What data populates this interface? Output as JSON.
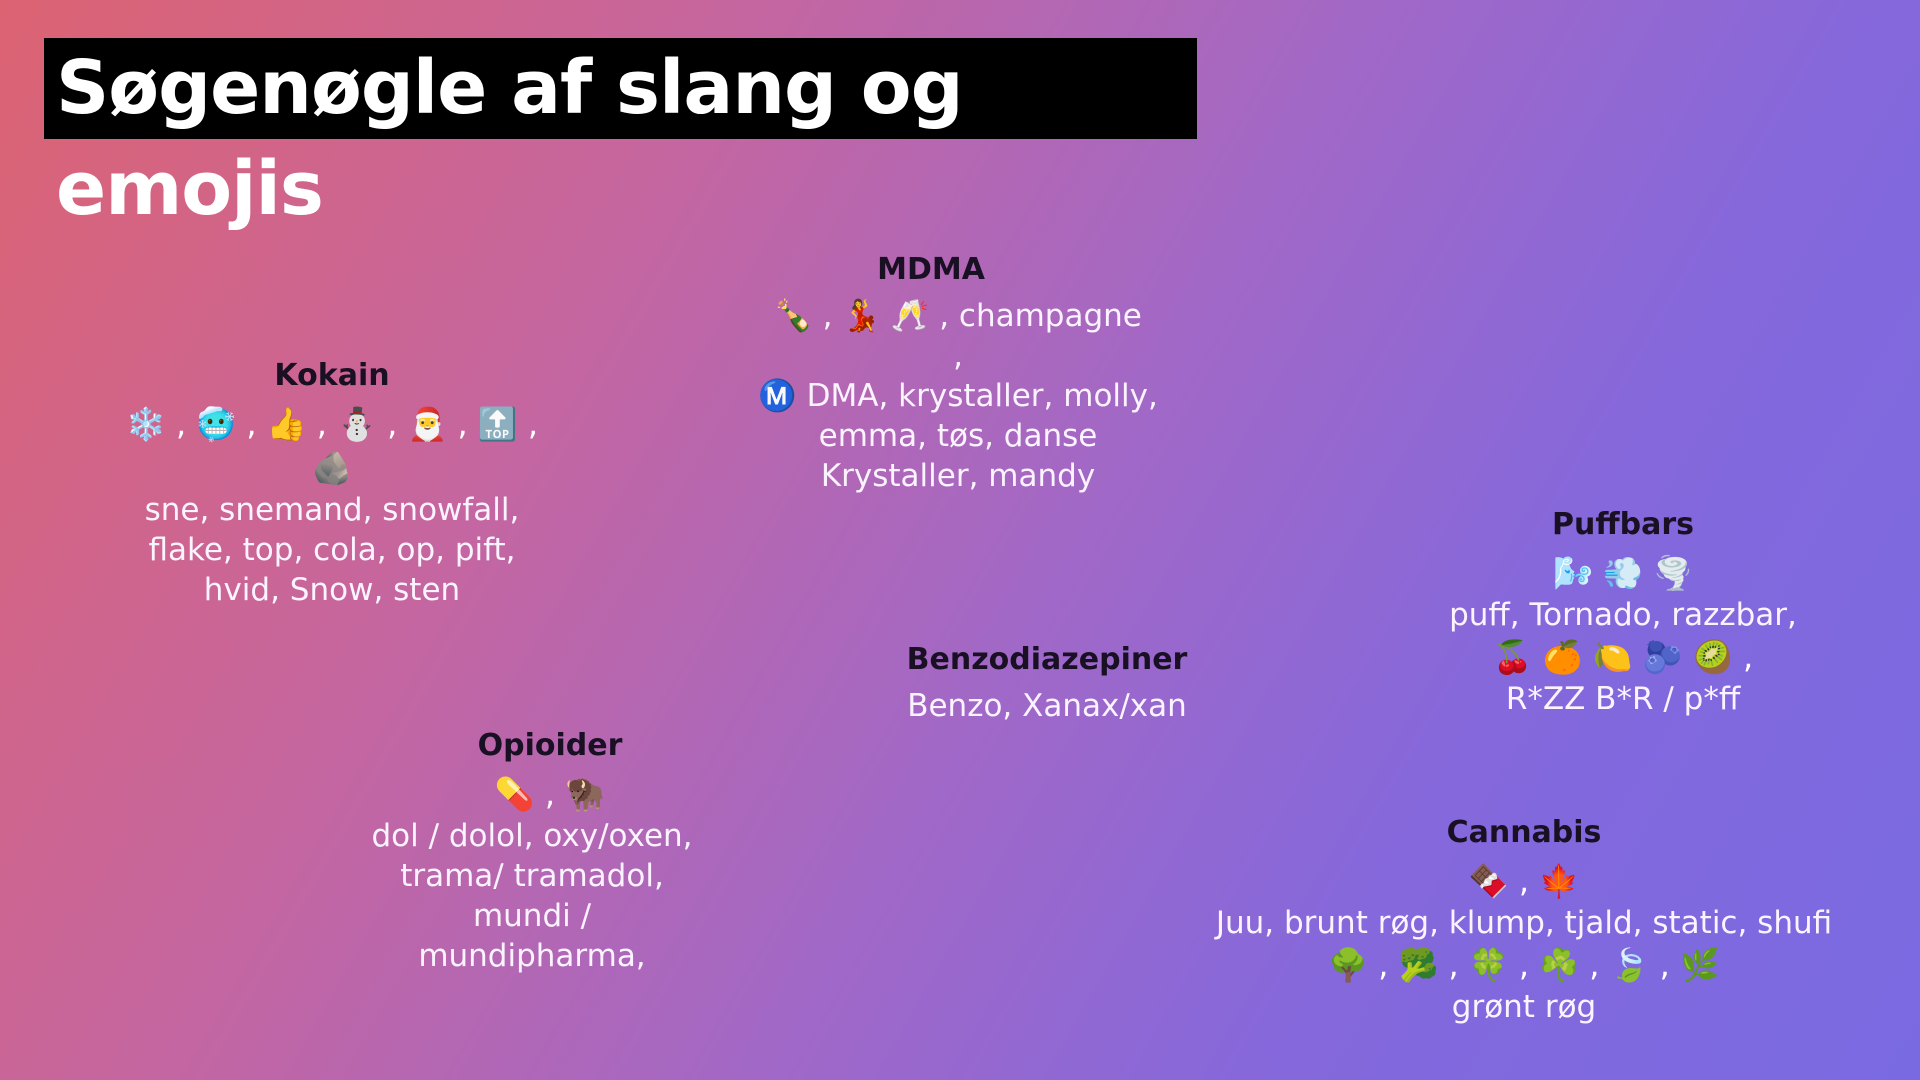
{
  "title": "Søgenøgle af slang og emojis",
  "sections": {
    "kokain": {
      "heading": "Kokain",
      "emojis": [
        "❄️ , 🥶 , 👍 , ⛄ , 🎅 , 🔝 ,",
        "🪨"
      ],
      "lines": [
        "sne, snemand, snowfall,",
        "flake, top, cola, op, pift,",
        "hvid, Snow, sten"
      ]
    },
    "mdma": {
      "heading": "MDMA",
      "lines": [
        "🍾 , 💃 🥂 , champagne",
        ",",
        "Ⓜ️ DMA, krystaller, molly,",
        "emma, tøs, danse",
        "Krystaller, mandy"
      ]
    },
    "puffbars": {
      "heading": "Puffbars",
      "lines": [
        "🌬️ 💨 🌪️",
        "puff, Tornado, razzbar,",
        "🍒 🍊 🍋 🫐 🥝 ,",
        "R*ZZ B*R / p*ff"
      ]
    },
    "benzo": {
      "heading": "Benzodiazepiner",
      "lines": [
        "Benzo, Xanax/xan"
      ]
    },
    "opioider": {
      "heading": "Opioider",
      "lines": [
        "💊 , 🦬",
        "dol / dolol, oxy/oxen,",
        "trama/ tramadol,",
        "mundi /",
        "mundipharma,"
      ]
    },
    "cannabis": {
      "heading": "Cannabis",
      "lines": [
        "🍫 , 🍁",
        "Juu,  brunt røg, klump, tjald, static, shufi",
        "🌳 , 🥦 , 🍀 , ☘️ , 🍃 , 🌿",
        "grønt  røg"
      ]
    }
  }
}
